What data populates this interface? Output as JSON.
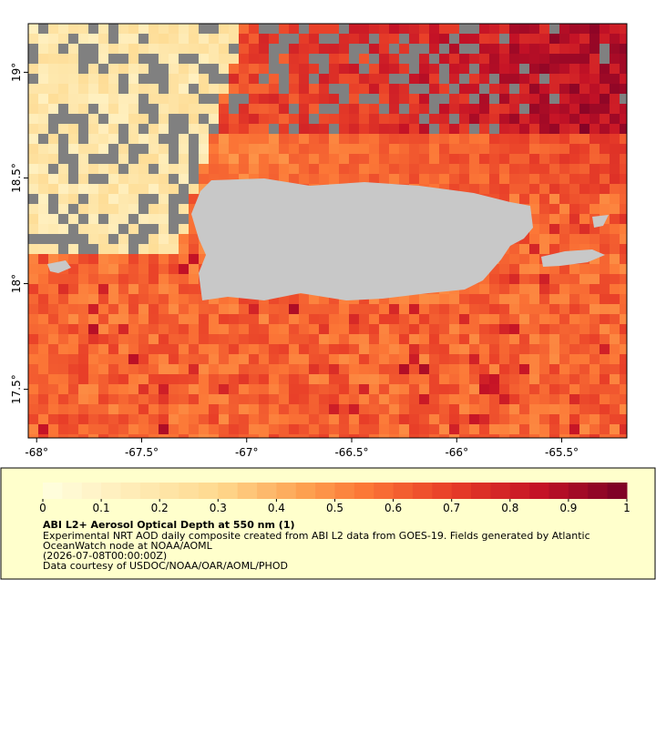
{
  "map": {
    "xlim": [
      -68.04,
      -65.19
    ],
    "ylim": [
      17.27,
      19.23
    ],
    "xticks": [
      {
        "value": -68,
        "label": "-68°"
      },
      {
        "value": -67.5,
        "label": "-67.5°"
      },
      {
        "value": -67,
        "label": "-67°"
      },
      {
        "value": -66.5,
        "label": "-66.5°"
      },
      {
        "value": -66,
        "label": "-66°"
      },
      {
        "value": -65.5,
        "label": "-65.5°"
      }
    ],
    "yticks": [
      {
        "value": 17.5,
        "label": "17.5°"
      },
      {
        "value": 18,
        "label": "18°"
      },
      {
        "value": 18.5,
        "label": "18.5°"
      },
      {
        "value": 19,
        "label": "19°"
      }
    ]
  },
  "legend": {
    "colorbar": {
      "lim": [
        0,
        1
      ],
      "ticks": [
        0,
        0.1,
        0.2,
        0.3,
        0.4,
        0.5,
        0.6,
        0.7,
        0.8,
        0.9,
        1
      ]
    },
    "title": "ABI L2+ Aerosol Optical Depth at 550 nm (1)",
    "lines": [
      "Experimental NRT AOD daily composite created from ABI L2 data from GOES-19. Fields generated by Atlantic",
      "OceanWatch node at NOAA/AOML",
      "(2026-07-08T00:00:00Z)",
      "Data courtesy of USDOC/NOAA/OAR/AOML/PHOD"
    ]
  }
}
